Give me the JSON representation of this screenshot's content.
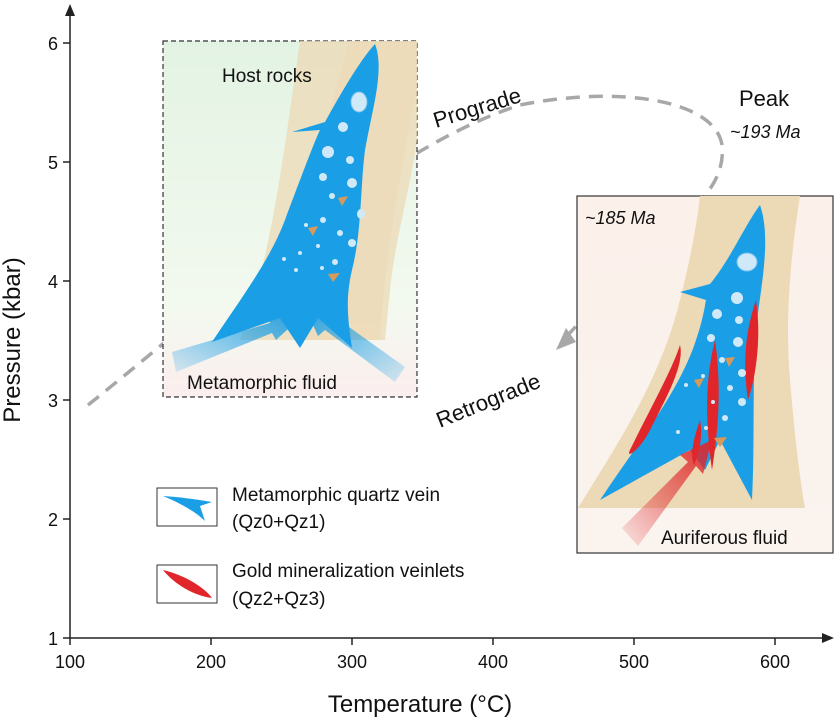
{
  "axes": {
    "x_title": "Temperature (°C)",
    "y_title": "Pressure (kbar)",
    "x_ticks": [
      "100",
      "200",
      "300",
      "400",
      "500",
      "600"
    ],
    "y_ticks": [
      "1",
      "2",
      "3",
      "4",
      "5",
      "6"
    ]
  },
  "path": {
    "prograde_label": "Prograde",
    "retrograde_label": "Retrograde",
    "peak_label": "Peak",
    "peak_age": "~193 Ma"
  },
  "panel_left": {
    "host_label": "Host rocks",
    "fluid_label": "Metamorphic fluid"
  },
  "panel_right": {
    "age_label": "~185 Ma",
    "fluid_label": "Auriferous fluid"
  },
  "legend": {
    "items": [
      {
        "line1": "Metamorphic quartz vein",
        "line2": "(Qz0+Qz1)",
        "color": "#1a9ee6"
      },
      {
        "line1": "Gold mineralization veinlets",
        "line2": "(Qz2+Qz3)",
        "color": "#e0262b"
      }
    ]
  },
  "colors": {
    "vein_blue": "#1a9ee6",
    "gold_red": "#e0262b",
    "host_tan": "#ecd9b6",
    "path_gray": "#a8a8a8",
    "mineral_orange": "#d89a5a"
  }
}
